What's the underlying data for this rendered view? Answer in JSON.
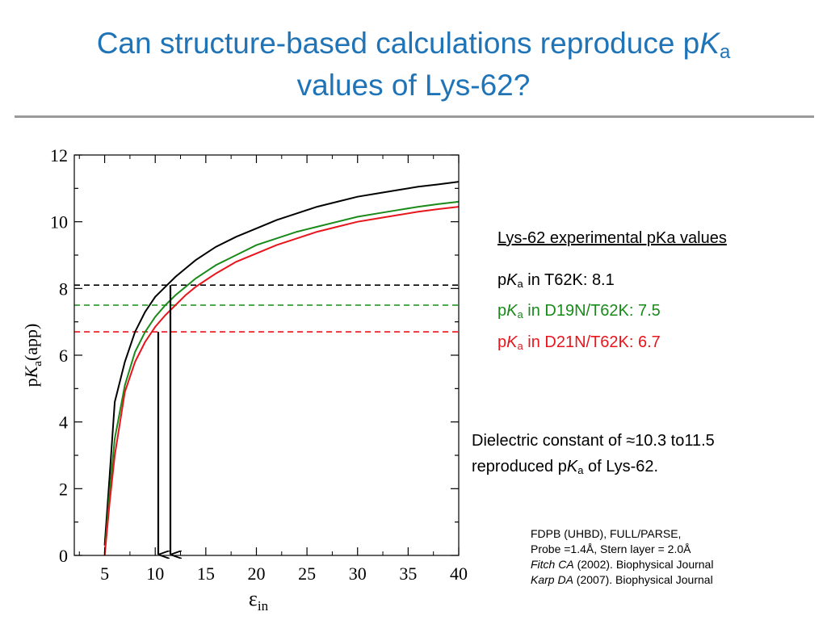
{
  "slide": {
    "title_part1": "Can structure-based calculations reproduce p",
    "title_k": "K",
    "title_sub": "a",
    "title_line2": "values of Lys-62?"
  },
  "experimental": {
    "heading": "Lys-62 experimental pKa values",
    "items": [
      {
        "p": "p",
        "k": "K",
        "sub": "a",
        "text": " in T62K: 8.1",
        "color": "#000000"
      },
      {
        "p": "p",
        "k": "K",
        "sub": "a",
        "text": " in D19N/T62K: 7.5",
        "color": "#1a8a1a"
      },
      {
        "p": "p",
        "k": "K",
        "sub": "a",
        "text": " in D21N/T62K: 6.7",
        "color": "#e8151c"
      }
    ]
  },
  "conclusion": {
    "line1_pre": "Dielectric constant of ",
    "approx_symbol": "≈",
    "line1_post": "10.3 to11.5",
    "line2_pre": "reproduced p",
    "k": "K",
    "sub": "a",
    "line2_post": " of Lys-62."
  },
  "references": {
    "method1": "FDPB (UHBD), FULL/PARSE,",
    "method2": "Probe =1.4Å, Stern layer = 2.0Å",
    "ref1_author": "Fitch CA",
    "ref1_rest": " (2002). Biophysical Journal",
    "ref2_author": "Karp DA",
    "ref2_rest": " (2007). Biophysical Journal"
  },
  "chart_data": {
    "type": "line",
    "xlabel": "ε",
    "xlabel_sub": "in",
    "ylabel_p": "p",
    "ylabel_k": "K",
    "ylabel_sub": "a",
    "ylabel_rest": "(app)",
    "xlim": [
      2,
      40
    ],
    "ylim": [
      0,
      12
    ],
    "x_ticks": [
      5,
      10,
      15,
      20,
      25,
      30,
      35,
      40
    ],
    "y_ticks": [
      0,
      2,
      4,
      6,
      8,
      10,
      12
    ],
    "series": [
      {
        "name": "T62K",
        "color": "#000000",
        "x": [
          5,
          5.5,
          6,
          7,
          8,
          9,
          10,
          11,
          12,
          13,
          14,
          15,
          16,
          18,
          20,
          22,
          24,
          26,
          28,
          30,
          32,
          34,
          36,
          38,
          40
        ],
        "y": [
          0.3,
          2.4,
          4.6,
          5.8,
          6.7,
          7.3,
          7.75,
          8.05,
          8.35,
          8.6,
          8.85,
          9.05,
          9.25,
          9.55,
          9.8,
          10.05,
          10.25,
          10.45,
          10.6,
          10.75,
          10.85,
          10.95,
          11.05,
          11.12,
          11.2
        ]
      },
      {
        "name": "D19N/T62K",
        "color": "#1a8a1a",
        "x": [
          5,
          5.5,
          6,
          7,
          8,
          9,
          10,
          11,
          12,
          13,
          14,
          15,
          16,
          18,
          20,
          22,
          24,
          26,
          28,
          30,
          32,
          34,
          36,
          38,
          40
        ],
        "y": [
          0.05,
          1.9,
          3.5,
          5.1,
          6.1,
          6.7,
          7.15,
          7.5,
          7.8,
          8.05,
          8.3,
          8.5,
          8.7,
          9.0,
          9.3,
          9.5,
          9.7,
          9.85,
          10.0,
          10.15,
          10.25,
          10.35,
          10.45,
          10.53,
          10.6
        ]
      },
      {
        "name": "D21N/T62K",
        "color": "#e8151c",
        "x": [
          5,
          5.5,
          6,
          7,
          8,
          9,
          10,
          11,
          12,
          13,
          14,
          15,
          16,
          18,
          20,
          22,
          24,
          26,
          28,
          30,
          32,
          34,
          36,
          38,
          40
        ],
        "y": [
          0.0,
          1.6,
          3.0,
          4.9,
          5.8,
          6.4,
          6.85,
          7.2,
          7.5,
          7.8,
          8.05,
          8.25,
          8.45,
          8.8,
          9.05,
          9.3,
          9.5,
          9.7,
          9.85,
          10.0,
          10.1,
          10.2,
          10.3,
          10.38,
          10.45
        ]
      }
    ],
    "reference_lines": [
      {
        "name": "T62K experimental",
        "y": 8.1,
        "color": "#000000"
      },
      {
        "name": "D19N/T62K experimental",
        "y": 7.5,
        "color": "#1a8a1a"
      },
      {
        "name": "D21N/T62K experimental",
        "y": 6.7,
        "color": "#e8151c"
      }
    ],
    "arrows": [
      {
        "x": 10.3,
        "from_y": 6.7,
        "to_y": 0
      },
      {
        "x": 11.5,
        "from_y": 8.1,
        "to_y": 0
      }
    ]
  }
}
